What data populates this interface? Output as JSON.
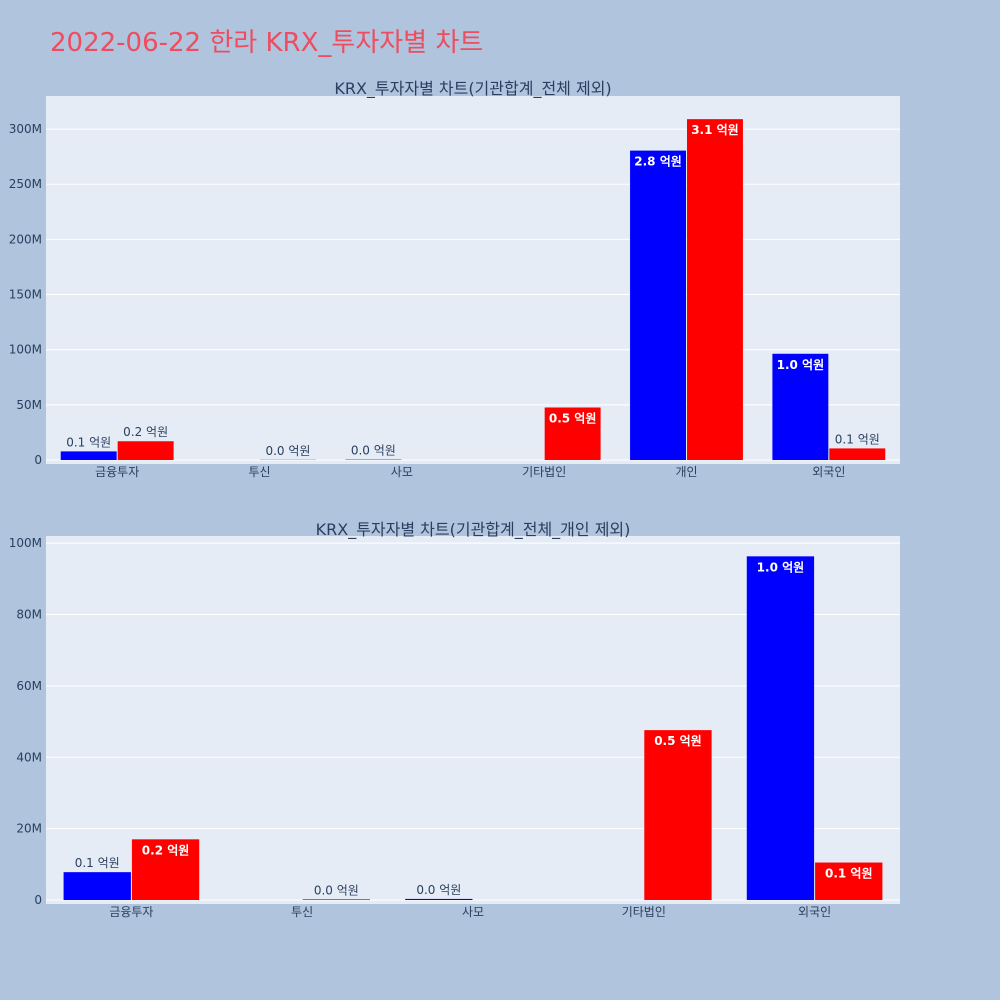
{
  "page": {
    "title": "2022-06-22 한라 KRX_투자자별 차트",
    "title_color": "#ef4c5f",
    "background": "#b0c4de",
    "plot_background": "#e5ecf6"
  },
  "chart_data": [
    {
      "type": "bar",
      "title": "KRX_투자자별 차트(기관합계_전체 제외)",
      "categories": [
        "금융투자",
        "투신",
        "사모",
        "기타법인",
        "개인",
        "외국인"
      ],
      "series": [
        {
          "color": "#0000ff",
          "values": [
            7800000,
            0,
            300000,
            0,
            280500000,
            96300000
          ],
          "labels": [
            "0.1 억원",
            "",
            "0.0 억원",
            "",
            "2.8 억원",
            "1.0 억원"
          ]
        },
        {
          "color": "#ff0000",
          "values": [
            17000000,
            200000,
            0,
            47600000,
            309000000,
            10500000
          ],
          "labels": [
            "0.2 억원",
            "0.0 억원",
            "",
            "0.5 억원",
            "3.1 억원",
            "0.1 억원"
          ]
        }
      ],
      "ylim": [
        0,
        330000000
      ],
      "yticks": [
        0,
        50000000,
        100000000,
        150000000,
        200000000,
        250000000,
        300000000
      ],
      "ytick_labels": [
        "0",
        "50M",
        "100M",
        "150M",
        "200M",
        "250M",
        "300M"
      ],
      "xlabel": "",
      "ylabel": "",
      "grid": true
    },
    {
      "type": "bar",
      "title": "KRX_투자자별 차트(기관합계_전체_개인 제외)",
      "categories": [
        "금융투자",
        "투신",
        "사모",
        "기타법인",
        "외국인"
      ],
      "series": [
        {
          "color": "#0000ff",
          "values": [
            7800000,
            0,
            300000,
            0,
            96300000
          ],
          "labels": [
            "0.1 억원",
            "",
            "0.0 억원",
            "",
            "1.0 억원"
          ]
        },
        {
          "color": "#ff0000",
          "values": [
            17000000,
            200000,
            0,
            47600000,
            10500000
          ],
          "labels": [
            "0.2 억원",
            "0.0 억원",
            "",
            "0.5 억원",
            "0.1 억원"
          ]
        }
      ],
      "ylim": [
        0,
        102000000
      ],
      "yticks": [
        0,
        20000000,
        40000000,
        60000000,
        80000000,
        100000000
      ],
      "ytick_labels": [
        "0",
        "20M",
        "40M",
        "60M",
        "80M",
        "100M"
      ],
      "xlabel": "",
      "ylabel": "",
      "grid": true
    }
  ]
}
